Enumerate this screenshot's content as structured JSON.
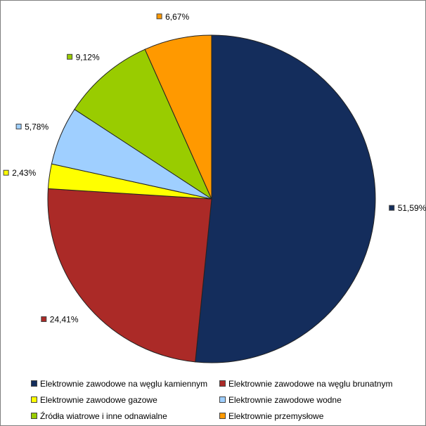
{
  "chart_data": {
    "type": "pie",
    "title": "",
    "categories": [
      "Elektrownie zawodowe na węglu kamiennym",
      "Elektrownie zawodowe na węglu brunatnym",
      "Elektrownie zawodowe gazowe",
      "Elektrownie zawodowe wodne",
      "Źródła wiatrowe i inne odnawialne",
      "Elektrownie przemysłowe"
    ],
    "values": [
      51.59,
      24.41,
      2.43,
      5.78,
      9.12,
      6.67
    ],
    "labels": [
      "51,59%",
      "24,41%",
      "2,43%",
      "5,78%",
      "9,12%",
      "6,67%"
    ],
    "colors": [
      "#142d5c",
      "#ab2a27",
      "#ffff00",
      "#9fcfff",
      "#99cc00",
      "#ff9900"
    ],
    "legend_position": "bottom",
    "start_angle": "top, clockwise"
  }
}
